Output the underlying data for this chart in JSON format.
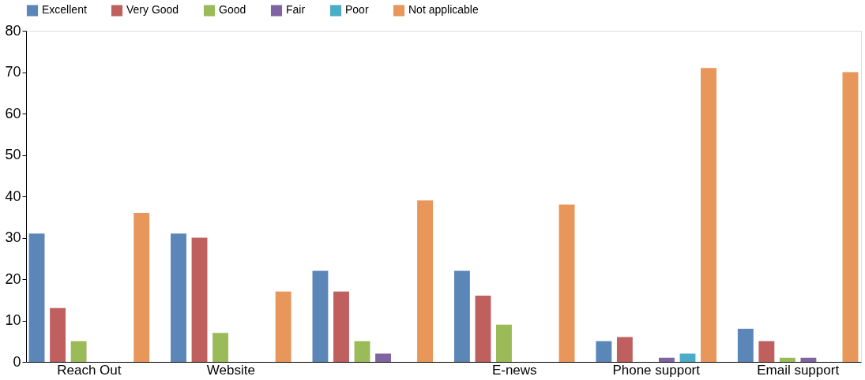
{
  "chart_data": {
    "type": "bar",
    "categories": [
      "Reach Out",
      "Website",
      null,
      "E-news",
      "Phone support",
      "Email support"
    ],
    "series": [
      {
        "name": "Excellent",
        "color": "#5b86b8",
        "values": [
          31,
          31,
          22,
          22,
          5,
          8
        ]
      },
      {
        "name": "Very Good",
        "color": "#c0605e",
        "values": [
          13,
          30,
          17,
          16,
          6,
          5
        ]
      },
      {
        "name": "Good",
        "color": "#9bbb59",
        "values": [
          5,
          7,
          5,
          9,
          0,
          1
        ]
      },
      {
        "name": "Fair",
        "color": "#8064a2",
        "values": [
          0,
          0,
          2,
          0,
          1,
          1
        ]
      },
      {
        "name": "Poor",
        "color": "#4bacc6",
        "values": [
          0,
          0,
          0,
          0,
          2,
          0
        ]
      },
      {
        "name": "Not applicable",
        "color": "#e8965a",
        "values": [
          36,
          17,
          39,
          38,
          71,
          70
        ]
      }
    ],
    "ylim": [
      0,
      80
    ],
    "yticks": [
      0,
      10,
      20,
      30,
      40,
      50,
      60,
      70,
      80
    ],
    "grid": false,
    "legend": "top left"
  }
}
